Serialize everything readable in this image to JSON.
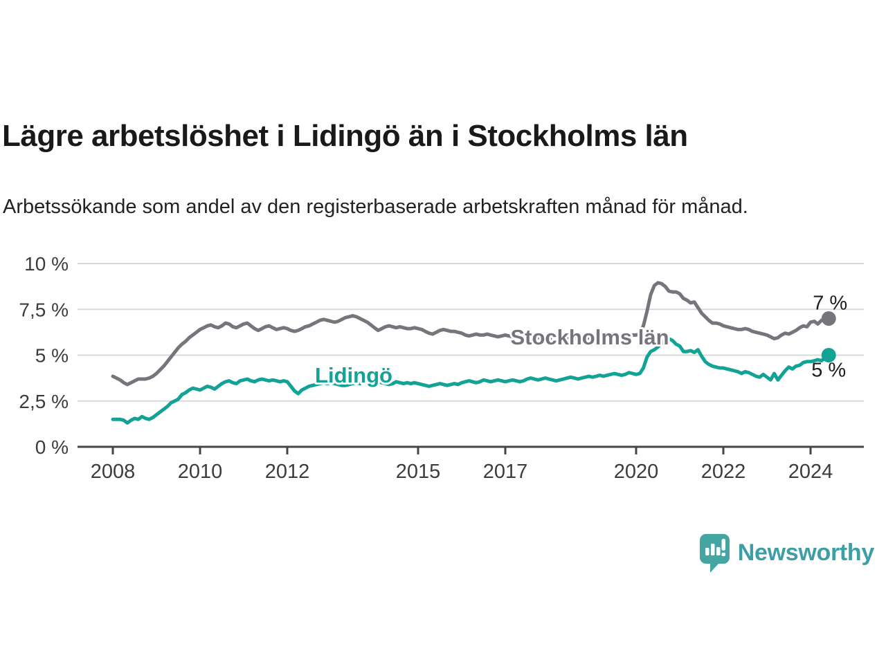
{
  "title": "Lägre arbetslöshet i Lidingö än i Stockholms län",
  "subtitle": "Arbetssökande som andel av den registerbaserade arbetskraften månad för månad.",
  "branding": {
    "wordmark": "Newsworthy",
    "logo_color": "#45a5a3",
    "wordmark_color": "#3e9ea6"
  },
  "chart_data": {
    "type": "line",
    "title": "Lägre arbetslöshet i Lidingö än i Stockholms län",
    "subtitle": "Arbetssökande som andel av den registerbaserade arbetskraften månad för månad.",
    "x_start_year": 2008,
    "frequency": "monthly",
    "ylim": [
      0,
      10
    ],
    "grid": "horizontal",
    "grid_color": "#d9d9d9",
    "axis_color": "#454545",
    "axis_text_color": "#3c3c3c",
    "value_label_color": "#1d1d1b",
    "yticks": [
      {
        "value": 10,
        "label": "10 %"
      },
      {
        "value": 7.5,
        "label": "7,5 %"
      },
      {
        "value": 5,
        "label": "5 %"
      },
      {
        "value": 2.5,
        "label": "2,5 %"
      },
      {
        "value": 0,
        "label": "0 %"
      }
    ],
    "xticks": [
      {
        "year": 2008,
        "label": "2008"
      },
      {
        "year": 2010,
        "label": "2010"
      },
      {
        "year": 2012,
        "label": "2012"
      },
      {
        "year": 2015,
        "label": "2015"
      },
      {
        "year": 2017,
        "label": "2017"
      },
      {
        "year": 2020,
        "label": "2020"
      },
      {
        "year": 2022,
        "label": "2022"
      },
      {
        "year": 2024,
        "label": "2024"
      }
    ],
    "series": [
      {
        "name": "Stockholms län",
        "color": "#76757c",
        "end_label": "7 %",
        "values": [
          3.85,
          3.75,
          3.65,
          3.5,
          3.4,
          3.5,
          3.6,
          3.7,
          3.7,
          3.7,
          3.75,
          3.85,
          4.0,
          4.2,
          4.4,
          4.65,
          4.9,
          5.15,
          5.4,
          5.6,
          5.75,
          5.95,
          6.1,
          6.25,
          6.4,
          6.5,
          6.6,
          6.65,
          6.55,
          6.5,
          6.6,
          6.75,
          6.7,
          6.55,
          6.5,
          6.6,
          6.7,
          6.75,
          6.6,
          6.45,
          6.35,
          6.45,
          6.55,
          6.6,
          6.5,
          6.4,
          6.45,
          6.5,
          6.45,
          6.35,
          6.3,
          6.35,
          6.45,
          6.55,
          6.6,
          6.7,
          6.8,
          6.9,
          6.95,
          6.9,
          6.85,
          6.8,
          6.85,
          6.95,
          7.05,
          7.1,
          7.15,
          7.1,
          7.0,
          6.9,
          6.8,
          6.65,
          6.5,
          6.35,
          6.45,
          6.55,
          6.6,
          6.55,
          6.5,
          6.55,
          6.5,
          6.45,
          6.45,
          6.5,
          6.45,
          6.4,
          6.3,
          6.2,
          6.15,
          6.25,
          6.35,
          6.4,
          6.35,
          6.3,
          6.3,
          6.25,
          6.2,
          6.1,
          6.05,
          6.1,
          6.15,
          6.1,
          6.1,
          6.15,
          6.1,
          6.05,
          6.0,
          6.05,
          6.1,
          6.05,
          6.0,
          5.95,
          5.95,
          6.0,
          6.1,
          6.05,
          6.0,
          5.95,
          5.95,
          6.0,
          5.95,
          5.9,
          5.85,
          5.8,
          5.85,
          5.9,
          6.0,
          5.95,
          5.9,
          5.85,
          5.9,
          5.95,
          5.9,
          5.9,
          5.85,
          5.9,
          5.95,
          6.0,
          6.1,
          6.05,
          6.0,
          6.0,
          6.05,
          6.1,
          6.1,
          6.15,
          6.6,
          7.4,
          8.3,
          8.8,
          8.95,
          8.9,
          8.75,
          8.5,
          8.45,
          8.45,
          8.35,
          8.1,
          8.0,
          7.85,
          7.9,
          7.6,
          7.3,
          7.1,
          6.9,
          6.75,
          6.75,
          6.7,
          6.6,
          6.55,
          6.5,
          6.45,
          6.4,
          6.4,
          6.45,
          6.4,
          6.3,
          6.25,
          6.2,
          6.15,
          6.1,
          6.0,
          5.9,
          5.95,
          6.1,
          6.2,
          6.15,
          6.25,
          6.35,
          6.5,
          6.6,
          6.55,
          6.8,
          6.85,
          6.7,
          6.9,
          6.95,
          7.0
        ]
      },
      {
        "name": "Lidingö",
        "color": "#13a296",
        "end_label": "5 %",
        "values": [
          1.5,
          1.5,
          1.5,
          1.45,
          1.3,
          1.45,
          1.55,
          1.5,
          1.65,
          1.55,
          1.5,
          1.6,
          1.75,
          1.9,
          2.05,
          2.2,
          2.4,
          2.5,
          2.6,
          2.85,
          2.95,
          3.1,
          3.2,
          3.15,
          3.1,
          3.2,
          3.3,
          3.25,
          3.15,
          3.3,
          3.45,
          3.55,
          3.6,
          3.5,
          3.45,
          3.6,
          3.65,
          3.7,
          3.6,
          3.55,
          3.65,
          3.7,
          3.65,
          3.6,
          3.65,
          3.6,
          3.55,
          3.6,
          3.55,
          3.3,
          3.05,
          2.9,
          3.1,
          3.2,
          3.3,
          3.35,
          3.4,
          3.45,
          3.5,
          3.45,
          3.5,
          3.45,
          3.4,
          3.35,
          3.35,
          3.4,
          3.45,
          3.5,
          3.45,
          3.55,
          3.65,
          3.5,
          3.45,
          3.55,
          3.5,
          3.45,
          3.4,
          3.45,
          3.55,
          3.5,
          3.45,
          3.5,
          3.45,
          3.5,
          3.45,
          3.4,
          3.35,
          3.3,
          3.35,
          3.4,
          3.45,
          3.4,
          3.35,
          3.4,
          3.45,
          3.4,
          3.5,
          3.55,
          3.6,
          3.55,
          3.5,
          3.55,
          3.65,
          3.6,
          3.55,
          3.6,
          3.65,
          3.6,
          3.55,
          3.6,
          3.65,
          3.6,
          3.55,
          3.6,
          3.7,
          3.75,
          3.7,
          3.65,
          3.7,
          3.75,
          3.7,
          3.65,
          3.6,
          3.65,
          3.7,
          3.75,
          3.8,
          3.75,
          3.7,
          3.75,
          3.8,
          3.85,
          3.8,
          3.85,
          3.9,
          3.85,
          3.9,
          3.95,
          4.0,
          3.95,
          3.9,
          3.95,
          4.05,
          4.0,
          3.95,
          4.0,
          4.3,
          4.9,
          5.2,
          5.3,
          5.45,
          5.65,
          5.85,
          5.9,
          5.8,
          5.6,
          5.5,
          5.2,
          5.2,
          5.25,
          5.15,
          5.3,
          4.95,
          4.65,
          4.5,
          4.4,
          4.35,
          4.3,
          4.3,
          4.25,
          4.2,
          4.15,
          4.1,
          4.0,
          4.1,
          4.05,
          3.95,
          3.85,
          3.8,
          3.95,
          3.8,
          3.65,
          4.0,
          3.65,
          3.9,
          4.15,
          4.35,
          4.25,
          4.4,
          4.45,
          4.6,
          4.65,
          4.65,
          4.7,
          4.75,
          4.7,
          4.85,
          5.0
        ]
      }
    ]
  }
}
